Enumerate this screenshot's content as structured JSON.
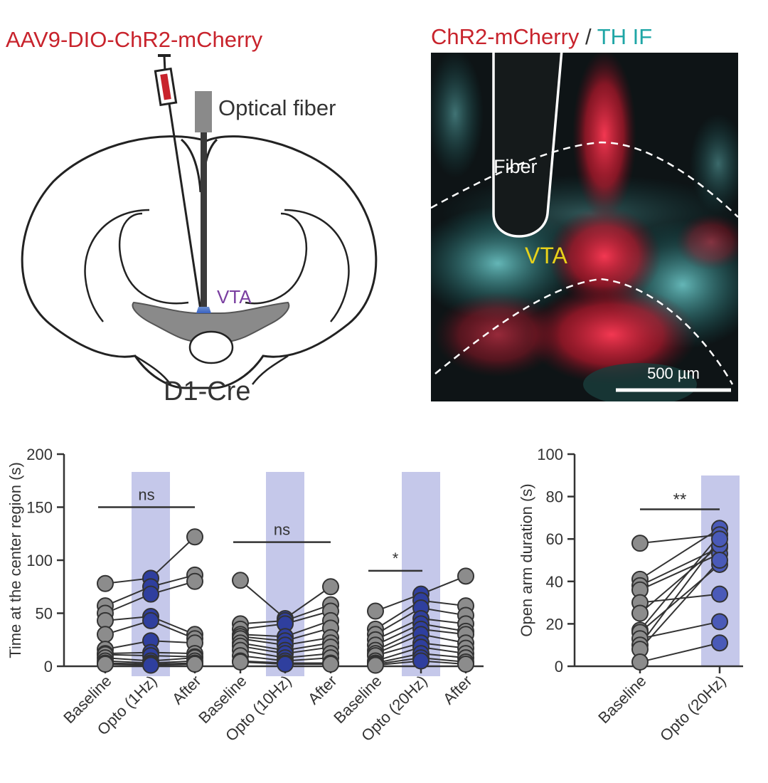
{
  "schematic": {
    "virus_label": "AAV9-DIO-ChR2-mCherry",
    "fiber_label": "Optical fiber",
    "region_label": "VTA",
    "mouse_label": "D1-Cre"
  },
  "micrograph": {
    "title_red": "ChR2-mCherry",
    "title_sep": " / ",
    "title_cyan": "TH IF",
    "fiber_label": "Fiber",
    "region_label": "VTA",
    "scale_label": "500 µm"
  },
  "colors": {
    "virus_red": "#c8232c",
    "cyan": "#1fa6a6",
    "vta_purple": "#7a3fa0",
    "vta_yellow": "#e8d21a",
    "gray_point": "#8c8c8c",
    "blue_point": "#2f3f9e",
    "opto_band": "#c5c8ea",
    "brain_gray": "#8a8a8a"
  },
  "chart_data": [
    {
      "type": "scatter",
      "title": "",
      "xlabel": "",
      "ylabel": "Time at the center region (s)",
      "ylim": [
        0,
        200
      ],
      "yticks": [
        0,
        50,
        100,
        150,
        200
      ],
      "categories": [
        "Baseline",
        "Opto (1Hz)",
        "After",
        "Baseline",
        "Opto (10Hz)",
        "After",
        "Baseline",
        "Opto (20Hz)",
        "After"
      ],
      "opto_categories": [
        "Opto (1Hz)",
        "Opto (10Hz)",
        "Opto (20Hz)"
      ],
      "groups": [
        {
          "stimulation": "Opto (1Hz)",
          "significance": "ns",
          "bracket_y": 150,
          "baseline": [
            78,
            57,
            50,
            43,
            30,
            16,
            12,
            11,
            8,
            5,
            3,
            2
          ],
          "opto": [
            83,
            75,
            68,
            47,
            43,
            24,
            13,
            10,
            5,
            3,
            2,
            1
          ],
          "after": [
            122,
            86,
            80,
            30,
            26,
            22,
            12,
            9,
            8,
            5,
            3,
            2
          ]
        },
        {
          "stimulation": "Opto (10Hz)",
          "significance": "ns",
          "bracket_y": 117,
          "baseline": [
            81,
            40,
            35,
            30,
            28,
            26,
            22,
            19,
            15,
            10,
            5,
            4
          ],
          "opto": [
            45,
            43,
            40,
            28,
            24,
            20,
            15,
            12,
            8,
            5,
            3,
            2
          ],
          "after": [
            75,
            58,
            52,
            43,
            36,
            27,
            22,
            18,
            12,
            8,
            3,
            2
          ]
        },
        {
          "stimulation": "Opto (20Hz)",
          "significance": "*",
          "bracket_y": 90,
          "baseline": [
            52,
            35,
            30,
            25,
            20,
            15,
            12,
            10,
            5,
            3,
            2,
            1
          ],
          "opto": [
            68,
            62,
            55,
            45,
            40,
            35,
            30,
            22,
            18,
            12,
            8,
            5
          ],
          "after": [
            85,
            57,
            48,
            40,
            33,
            30,
            22,
            17,
            12,
            8,
            4,
            2
          ]
        }
      ]
    },
    {
      "type": "scatter",
      "title": "",
      "xlabel": "",
      "ylabel": "Open arm duration (s)",
      "ylim": [
        0,
        100
      ],
      "yticks": [
        0,
        20,
        40,
        60,
        80,
        100
      ],
      "categories": [
        "Baseline",
        "Opto (20Hz)"
      ],
      "significance": "**",
      "bracket_y": 74,
      "baseline": [
        58,
        41,
        38,
        36,
        30,
        25,
        17,
        16,
        13,
        10,
        8,
        2
      ],
      "opto": [
        62,
        65,
        56,
        53,
        34,
        57,
        62,
        48,
        21,
        60,
        50,
        11
      ]
    }
  ]
}
